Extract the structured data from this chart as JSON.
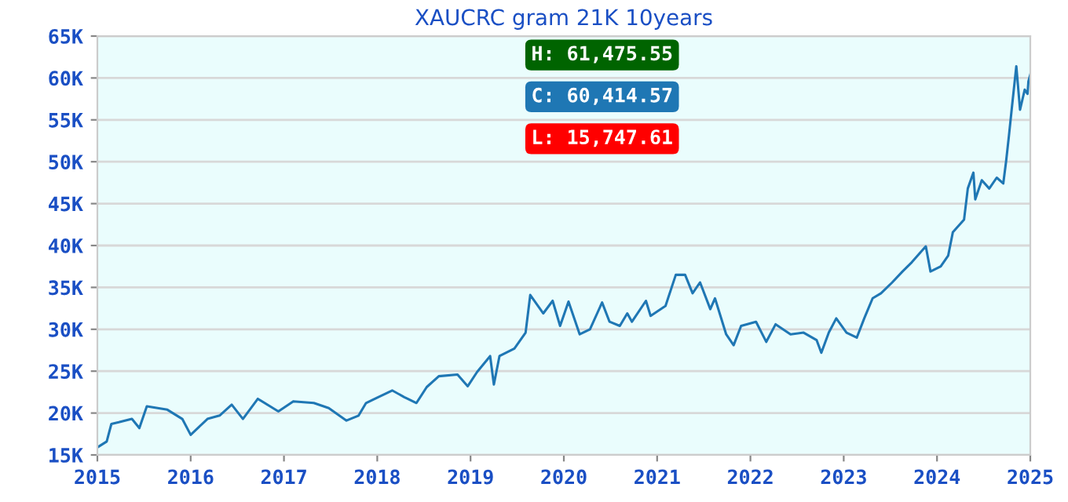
{
  "chart_data": {
    "type": "line",
    "title": "XAUCRC gram 21K 10years",
    "x": [
      2015.0,
      2015.1,
      2015.15,
      2015.23,
      2015.37,
      2015.45,
      2015.53,
      2015.75,
      2015.91,
      2016.0,
      2016.18,
      2016.31,
      2016.44,
      2016.56,
      2016.72,
      2016.94,
      2017.1,
      2017.32,
      2017.48,
      2017.67,
      2017.8,
      2017.88,
      2018.16,
      2018.29,
      2018.42,
      2018.53,
      2018.66,
      2018.86,
      2018.97,
      2019.07,
      2019.21,
      2019.25,
      2019.31,
      2019.47,
      2019.59,
      2019.64,
      2019.78,
      2019.88,
      2019.96,
      2020.05,
      2020.17,
      2020.28,
      2020.41,
      2020.49,
      2020.6,
      2020.68,
      2020.73,
      2020.88,
      2020.93,
      2021.09,
      2021.2,
      2021.3,
      2021.38,
      2021.46,
      2021.57,
      2021.62,
      2021.74,
      2021.82,
      2021.9,
      2022.06,
      2022.17,
      2022.27,
      2022.43,
      2022.57,
      2022.71,
      2022.76,
      2022.84,
      2022.92,
      2023.03,
      2023.14,
      2023.22,
      2023.31,
      2023.4,
      2023.52,
      2023.63,
      2023.73,
      2023.88,
      2023.93,
      2024.04,
      2024.12,
      2024.17,
      2024.29,
      2024.33,
      2024.39,
      2024.41,
      2024.48,
      2024.56,
      2024.64,
      2024.71,
      2024.74,
      2024.77,
      2024.8,
      2024.85,
      2024.89,
      2024.94,
      2024.97,
      2024.98,
      2025.0
    ],
    "series": [
      {
        "color": "#1f77b4",
        "values": [
          15900,
          16600,
          18700,
          18900,
          19300,
          18200,
          20800,
          20400,
          19300,
          17400,
          19300,
          19700,
          21000,
          19300,
          21700,
          20200,
          21400,
          21200,
          20600,
          19100,
          19700,
          21200,
          22700,
          21900,
          21200,
          23100,
          24400,
          24600,
          23200,
          24900,
          26800,
          23400,
          26800,
          27700,
          29600,
          34100,
          31900,
          33400,
          30400,
          33300,
          29400,
          30000,
          33200,
          30900,
          30400,
          31900,
          30900,
          33400,
          31600,
          32800,
          36500,
          36500,
          34300,
          35600,
          32400,
          33700,
          29400,
          28100,
          30400,
          30900,
          28500,
          30600,
          29400,
          29600,
          28700,
          27200,
          29600,
          31300,
          29600,
          29000,
          31300,
          33700,
          34300,
          35600,
          36900,
          38000,
          39900,
          36900,
          37500,
          38800,
          41600,
          43100,
          46800,
          48700,
          45500,
          47800,
          46800,
          48100,
          47400,
          50000,
          53000,
          56200,
          61400,
          56200,
          58600,
          58100,
          59600,
          60400
        ]
      }
    ],
    "xlim": [
      2015,
      2025
    ],
    "xticks": [
      2015,
      2016,
      2017,
      2018,
      2019,
      2020,
      2021,
      2022,
      2023,
      2024,
      2025
    ],
    "ylim": [
      15000,
      65000
    ],
    "yticks": [
      {
        "value": 15000,
        "label": "15K"
      },
      {
        "value": 20000,
        "label": "20K"
      },
      {
        "value": 25000,
        "label": "25K"
      },
      {
        "value": 30000,
        "label": "30K"
      },
      {
        "value": 35000,
        "label": "35K"
      },
      {
        "value": 40000,
        "label": "40K"
      },
      {
        "value": 45000,
        "label": "45K"
      },
      {
        "value": 50000,
        "label": "50K"
      },
      {
        "value": 55000,
        "label": "55K"
      },
      {
        "value": 60000,
        "label": "60K"
      },
      {
        "value": 65000,
        "label": "65K"
      }
    ],
    "grid": "y",
    "annotations": [
      "H: 61,475.55",
      "C: 60,414.57",
      "L: 15,747.61"
    ]
  }
}
